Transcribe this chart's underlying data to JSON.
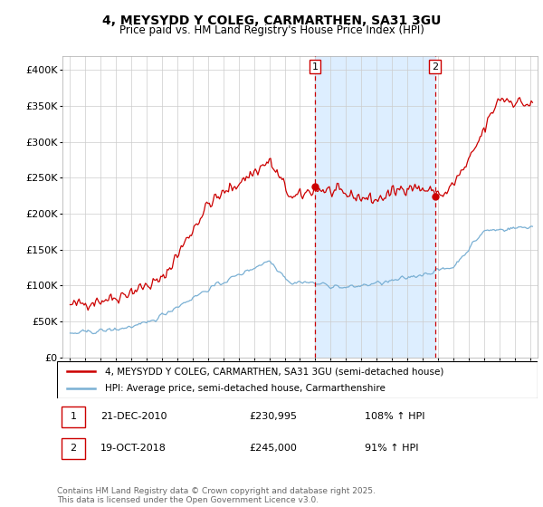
{
  "title1": "4, MEYSYDD Y COLEG, CARMARTHEN, SA31 3GU",
  "title2": "Price paid vs. HM Land Registry's House Price Index (HPI)",
  "ylim": [
    0,
    420000
  ],
  "yticks": [
    0,
    50000,
    100000,
    150000,
    200000,
    250000,
    300000,
    350000,
    400000
  ],
  "ytick_labels": [
    "£0",
    "£50K",
    "£100K",
    "£150K",
    "£200K",
    "£250K",
    "£300K",
    "£350K",
    "£400K"
  ],
  "red_color": "#cc0000",
  "blue_color": "#7ab0d4",
  "shade_color": "#ddeeff",
  "marker1_date": 2010.97,
  "marker2_date": 2018.8,
  "legend_line1": "4, MEYSYDD Y COLEG, CARMARTHEN, SA31 3GU (semi-detached house)",
  "legend_line2": "HPI: Average price, semi-detached house, Carmarthenshire",
  "footer": "Contains HM Land Registry data © Crown copyright and database right 2025.\nThis data is licensed under the Open Government Licence v3.0.",
  "xmin": 1994.5,
  "xmax": 2025.5,
  "noise_seed": 42
}
